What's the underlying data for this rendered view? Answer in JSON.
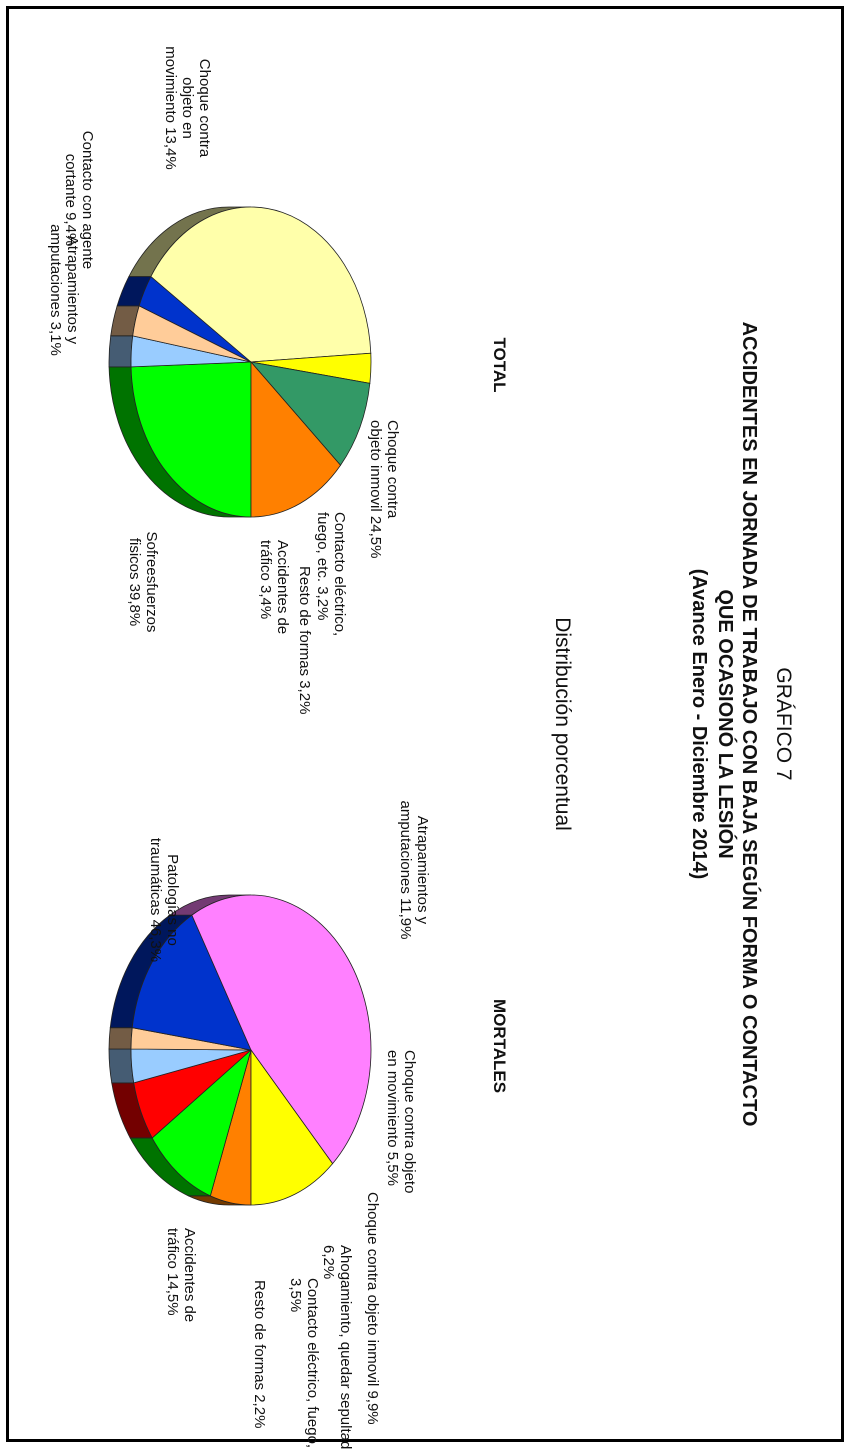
{
  "header": {
    "graphic_number": "GRÁFICO 7",
    "title_line1": "ACCIDENTES EN JORNADA DE TRABAJO CON BAJA SEGÚN FORMA O CONTACTO",
    "title_line2": "QUE OCASIONÓ LA LESIÓN",
    "title_line3": "(Avance Enero - Diciembre 2014)",
    "subtitle": "Distribución porcentual"
  },
  "chart_data": [
    {
      "type": "pie",
      "title": "TOTAL",
      "slices": [
        {
          "label": [
            "Choque contra",
            "objeto inmovil 24,5%"
          ],
          "value": 24.5,
          "color": "#00ff00"
        },
        {
          "label": [
            "Contacto eléctrico,",
            "fuego, etc. 3,2%"
          ],
          "value": 3.2,
          "color": "#99ccff"
        },
        {
          "label": [
            "Resto de formas 3,2%"
          ],
          "value": 3.2,
          "color": "#ffcc99"
        },
        {
          "label": [
            "Accidentes de",
            "tráfico 3,4%"
          ],
          "value": 3.4,
          "color": "#0033cc"
        },
        {
          "label": [
            "Sofreesfuerzos",
            "fisicos 39,8%"
          ],
          "value": 39.8,
          "color": "#ffffaa"
        },
        {
          "label": [
            "Atrapamientos y",
            "amputaciones 3,1%"
          ],
          "value": 3.1,
          "color": "#ffff00"
        },
        {
          "label": [
            "Contacto con agente",
            "cortante 9,4%"
          ],
          "value": 9.4,
          "color": "#339966"
        },
        {
          "label": [
            "Choque contra",
            "objeto en",
            "movimiento 13,4%"
          ],
          "value": 13.4,
          "color": "#ff8000"
        }
      ]
    },
    {
      "type": "pie",
      "title": "MORTALES",
      "slices": [
        {
          "label": [
            "Choque contra objeto",
            "en movimiento 5,5%"
          ],
          "value": 5.5,
          "color": "#ff8000"
        },
        {
          "label": [
            "Choque contra objeto inmovil 9,9%"
          ],
          "value": 9.9,
          "color": "#00ff00"
        },
        {
          "label": [
            "Ahogamiento, quedar sepultado",
            "6,2%"
          ],
          "value": 6.2,
          "color": "#ff0000"
        },
        {
          "label": [
            "Contacto eléctrico, fuego, etc.",
            "3,5%"
          ],
          "value": 3.5,
          "color": "#99ccff"
        },
        {
          "label": [
            "Resto de formas 2,2%"
          ],
          "value": 2.2,
          "color": "#ffcc99"
        },
        {
          "label": [
            "Accidentes de",
            "tráfico 14,5%"
          ],
          "value": 14.5,
          "color": "#0033cc"
        },
        {
          "label": [
            "Patologías no",
            "traumáticas 46,3%"
          ],
          "value": 46.3,
          "color": "#ff80ff"
        },
        {
          "label": [
            "Atrapamientos y",
            "amputaciones 11,9%"
          ],
          "value": 11.9,
          "color": "#ffff00"
        }
      ]
    }
  ]
}
